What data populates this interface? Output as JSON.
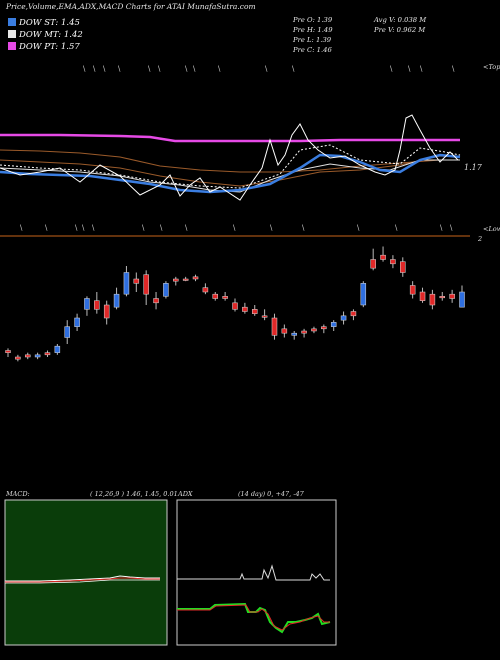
{
  "title": "Price,Volume,EMA,ADX,MACD Charts for ATAI MunafaSutra.com",
  "dow": [
    {
      "label": "DOW ST: 1.45",
      "color": "#3a7de0"
    },
    {
      "label": "DOW MT: 1.42",
      "color": "#e8e8e8"
    },
    {
      "label": "DOW PT: 1.57",
      "color": "#e64ae6"
    }
  ],
  "stats": {
    "prev_open": "Pre  O: 1.39",
    "prev_high": "Pre  H: 1.49",
    "prev_low": "Pre  L: 1.39",
    "prev_close": "Pre  C: 1.46",
    "avg_volume": "Avg V: 0.038  M",
    "prev_volume": "Pre  V: 0.962  M"
  },
  "labels": {
    "tops": "<Tops",
    "lows": "<Lows",
    "price_tag": "1.17",
    "two": "2"
  },
  "colors": {
    "up": "#2f6fe0",
    "down": "#e02828",
    "pt_line": "#e64ae6",
    "st_line": "#3a7de0"
  },
  "macd": {
    "title": "MACD:",
    "params": "( 12,26,9 ) 1.46,  1.45,  0.01"
  },
  "adx": {
    "title": "ADX",
    "params": "(14  day) 0,  +47,  -47"
  },
  "chart_data": {
    "type": "candlestick",
    "candles": [
      {
        "o": 1.18,
        "h": 1.2,
        "l": 1.16,
        "c": 1.19,
        "dir": "down"
      },
      {
        "o": 1.16,
        "h": 1.17,
        "l": 1.14,
        "c": 1.15,
        "dir": "down"
      },
      {
        "o": 1.17,
        "h": 1.18,
        "l": 1.15,
        "c": 1.16,
        "dir": "down"
      },
      {
        "o": 1.16,
        "h": 1.18,
        "l": 1.15,
        "c": 1.17,
        "dir": "up"
      },
      {
        "o": 1.17,
        "h": 1.19,
        "l": 1.16,
        "c": 1.18,
        "dir": "down"
      },
      {
        "o": 1.18,
        "h": 1.22,
        "l": 1.17,
        "c": 1.21,
        "dir": "up"
      },
      {
        "o": 1.25,
        "h": 1.33,
        "l": 1.22,
        "c": 1.3,
        "dir": "up"
      },
      {
        "o": 1.3,
        "h": 1.36,
        "l": 1.28,
        "c": 1.34,
        "dir": "up"
      },
      {
        "o": 1.38,
        "h": 1.44,
        "l": 1.35,
        "c": 1.43,
        "dir": "up"
      },
      {
        "o": 1.42,
        "h": 1.46,
        "l": 1.36,
        "c": 1.38,
        "dir": "down"
      },
      {
        "o": 1.4,
        "h": 1.42,
        "l": 1.31,
        "c": 1.34,
        "dir": "down"
      },
      {
        "o": 1.39,
        "h": 1.48,
        "l": 1.38,
        "c": 1.45,
        "dir": "up"
      },
      {
        "o": 1.45,
        "h": 1.58,
        "l": 1.44,
        "c": 1.55,
        "dir": "up"
      },
      {
        "o": 1.52,
        "h": 1.55,
        "l": 1.46,
        "c": 1.5,
        "dir": "down"
      },
      {
        "o": 1.54,
        "h": 1.56,
        "l": 1.4,
        "c": 1.45,
        "dir": "down"
      },
      {
        "o": 1.43,
        "h": 1.46,
        "l": 1.38,
        "c": 1.41,
        "dir": "down"
      },
      {
        "o": 1.44,
        "h": 1.51,
        "l": 1.43,
        "c": 1.5,
        "dir": "up"
      },
      {
        "o": 1.51,
        "h": 1.53,
        "l": 1.49,
        "c": 1.52,
        "dir": "down"
      },
      {
        "o": 1.52,
        "h": 1.53,
        "l": 1.51,
        "c": 1.52,
        "dir": "down"
      },
      {
        "o": 1.53,
        "h": 1.54,
        "l": 1.51,
        "c": 1.52,
        "dir": "down"
      },
      {
        "o": 1.48,
        "h": 1.5,
        "l": 1.45,
        "c": 1.46,
        "dir": "down"
      },
      {
        "o": 1.45,
        "h": 1.46,
        "l": 1.42,
        "c": 1.43,
        "dir": "down"
      },
      {
        "o": 1.44,
        "h": 1.46,
        "l": 1.42,
        "c": 1.43,
        "dir": "down"
      },
      {
        "o": 1.41,
        "h": 1.43,
        "l": 1.37,
        "c": 1.38,
        "dir": "down"
      },
      {
        "o": 1.39,
        "h": 1.41,
        "l": 1.36,
        "c": 1.37,
        "dir": "down"
      },
      {
        "o": 1.38,
        "h": 1.4,
        "l": 1.35,
        "c": 1.36,
        "dir": "down"
      },
      {
        "o": 1.35,
        "h": 1.38,
        "l": 1.33,
        "c": 1.35,
        "dir": "down"
      },
      {
        "o": 1.34,
        "h": 1.36,
        "l": 1.24,
        "c": 1.26,
        "dir": "down"
      },
      {
        "o": 1.29,
        "h": 1.31,
        "l": 1.25,
        "c": 1.27,
        "dir": "down"
      },
      {
        "o": 1.26,
        "h": 1.28,
        "l": 1.24,
        "c": 1.27,
        "dir": "up"
      },
      {
        "o": 1.27,
        "h": 1.29,
        "l": 1.25,
        "c": 1.28,
        "dir": "down"
      },
      {
        "o": 1.28,
        "h": 1.3,
        "l": 1.27,
        "c": 1.29,
        "dir": "down"
      },
      {
        "o": 1.29,
        "h": 1.31,
        "l": 1.27,
        "c": 1.3,
        "dir": "down"
      },
      {
        "o": 1.3,
        "h": 1.33,
        "l": 1.28,
        "c": 1.32,
        "dir": "up"
      },
      {
        "o": 1.33,
        "h": 1.37,
        "l": 1.31,
        "c": 1.35,
        "dir": "up"
      },
      {
        "o": 1.35,
        "h": 1.38,
        "l": 1.33,
        "c": 1.37,
        "dir": "down"
      },
      {
        "o": 1.4,
        "h": 1.51,
        "l": 1.39,
        "c": 1.5,
        "dir": "up"
      },
      {
        "o": 1.61,
        "h": 1.66,
        "l": 1.56,
        "c": 1.57,
        "dir": "down"
      },
      {
        "o": 1.63,
        "h": 1.67,
        "l": 1.6,
        "c": 1.61,
        "dir": "down"
      },
      {
        "o": 1.61,
        "h": 1.63,
        "l": 1.57,
        "c": 1.59,
        "dir": "down"
      },
      {
        "o": 1.6,
        "h": 1.62,
        "l": 1.53,
        "c": 1.55,
        "dir": "down"
      },
      {
        "o": 1.49,
        "h": 1.51,
        "l": 1.43,
        "c": 1.45,
        "dir": "down"
      },
      {
        "o": 1.46,
        "h": 1.48,
        "l": 1.41,
        "c": 1.42,
        "dir": "down"
      },
      {
        "o": 1.45,
        "h": 1.47,
        "l": 1.38,
        "c": 1.4,
        "dir": "down"
      },
      {
        "o": 1.44,
        "h": 1.46,
        "l": 1.42,
        "c": 1.44,
        "dir": "down"
      },
      {
        "o": 1.45,
        "h": 1.47,
        "l": 1.41,
        "c": 1.43,
        "dir": "down"
      },
      {
        "o": 1.39,
        "h": 1.49,
        "l": 1.39,
        "c": 1.46,
        "dir": "up"
      }
    ],
    "ylim": [
      1.1,
      1.7
    ]
  }
}
